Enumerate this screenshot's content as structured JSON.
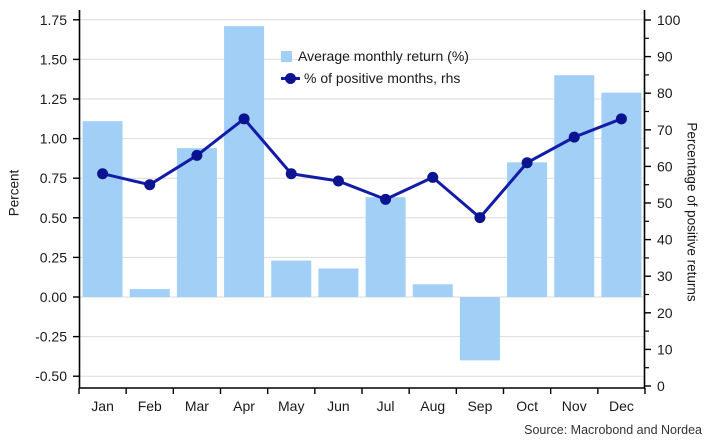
{
  "chart_data": {
    "type": "combo",
    "categories": [
      "Jan",
      "Feb",
      "Mar",
      "Apr",
      "May",
      "Jun",
      "Jul",
      "Aug",
      "Sep",
      "Oct",
      "Nov",
      "Dec"
    ],
    "series": [
      {
        "name": "Average monthly return (%)",
        "type": "bar",
        "axis": "left",
        "values": [
          1.11,
          0.05,
          0.94,
          1.71,
          0.23,
          0.18,
          0.63,
          0.08,
          -0.4,
          0.85,
          1.4,
          1.29
        ]
      },
      {
        "name": "% of positive months, rhs",
        "type": "line",
        "axis": "right",
        "values": [
          58,
          55,
          63,
          73,
          58,
          56,
          51,
          57,
          46,
          61,
          68,
          73
        ]
      }
    ],
    "ylabel_left": "Percent",
    "ylabel_right": "Percentage of positive returns",
    "ylim_left": [
      -0.5,
      1.75
    ],
    "yticks_left": [
      -0.5,
      -0.25,
      0.0,
      0.25,
      0.5,
      0.75,
      1.0,
      1.25,
      1.5,
      1.75
    ],
    "ylim_right": [
      0,
      100
    ],
    "yticks_right": [
      0,
      10,
      20,
      30,
      40,
      50,
      60,
      70,
      80,
      90,
      100
    ],
    "yticks_right_minor": [
      5,
      15,
      25,
      35,
      45,
      55,
      65,
      75,
      85,
      95
    ],
    "grid": "horizontal",
    "legend_position": "upper-center",
    "source": "Source: Macrobond and Nordea",
    "colors": {
      "bar": "#A1CFF5",
      "line": "#121CA8",
      "marker": "#0C1390",
      "grid": "#DBDBDB",
      "axis": "#000000",
      "text": "#1A1A1A"
    }
  }
}
